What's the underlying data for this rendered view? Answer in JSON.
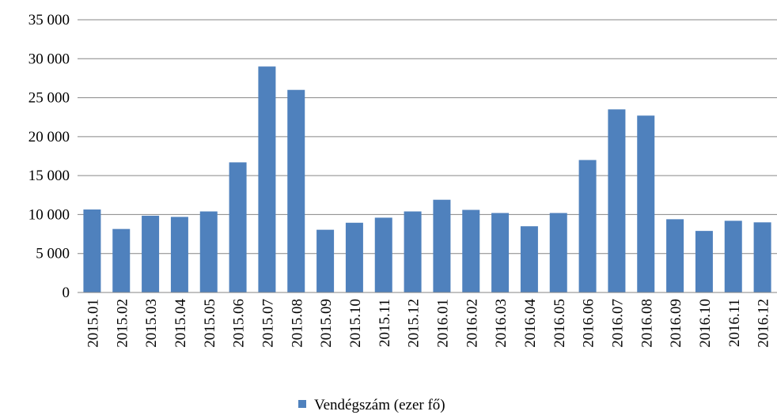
{
  "chart_data": {
    "type": "bar",
    "categories": [
      "2015.01",
      "2015.02",
      "2015.03",
      "2015.04",
      "2015.05",
      "2015.06",
      "2015.07",
      "2015.08",
      "2015.09",
      "2015.10",
      "2015.11",
      "2015.12",
      "2016.01",
      "2016.02",
      "2016.03",
      "2016.04",
      "2016.05",
      "2016.06",
      "2016.07",
      "2016.08",
      "2016.09",
      "2016.10",
      "2016.11",
      "2016.12"
    ],
    "series": [
      {
        "name": "Vendégszám (ezer fő)",
        "color": "#4f81bd",
        "values": [
          10650,
          8150,
          9850,
          9700,
          10400,
          16700,
          29000,
          26000,
          8050,
          8950,
          9600,
          10400,
          11900,
          10600,
          10200,
          8500,
          10200,
          17000,
          23500,
          22700,
          9400,
          7900,
          9200,
          9000
        ]
      }
    ],
    "ylim": [
      0,
      35000
    ],
    "yticks": [
      0,
      {
        "value": 5000,
        "label": "5 000"
      },
      {
        "value": 10000,
        "label": "10 000"
      },
      {
        "value": 15000,
        "label": "15 000"
      },
      {
        "value": 20000,
        "label": "20 000"
      },
      {
        "value": 25000,
        "label": "25 000"
      },
      {
        "value": 30000,
        "label": "30 000"
      },
      {
        "value": 35000,
        "label": "35 000"
      }
    ],
    "grid": true
  }
}
